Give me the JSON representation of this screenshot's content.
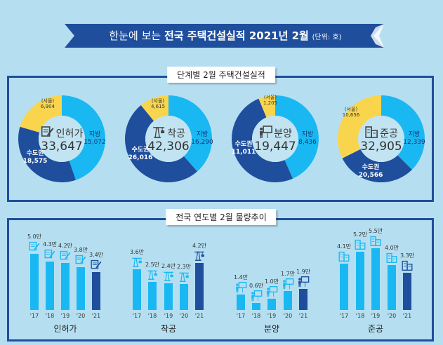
{
  "header": {
    "prefix": "한눈에 보는",
    "title": "전국 주택건설실적 2021년 2월",
    "unit": "(단위: 호)"
  },
  "colors": {
    "dark": "#1f4e9c",
    "light": "#1ab8f2",
    "seoul": "#f9d54e",
    "background": "#b5dff1"
  },
  "section1": {
    "label": "단계별 2월 주택건설실적"
  },
  "section2": {
    "label": "전국 연도별 2월 물량추이"
  },
  "chart_data": [
    {
      "type": "pie",
      "title": "단계별 2월 주택건설실적",
      "donuts": [
        {
          "name": "인허가",
          "icon": "document-pen-icon",
          "total": "33,647",
          "local_label": "지방",
          "local": "15,072",
          "metro_label": "수도권",
          "metro": "18,575",
          "seoul_label": "(서울)",
          "seoul": "6,904",
          "values": {
            "local": 15072,
            "metro": 18575,
            "seoul": 6904
          }
        },
        {
          "name": "착공",
          "icon": "crane-icon",
          "total": "42,306",
          "local_label": "지방",
          "local": "16,290",
          "metro_label": "수도권",
          "metro": "26,016",
          "seoul_label": "(서울)",
          "seoul": "4,615",
          "values": {
            "local": 16290,
            "metro": 26016,
            "seoul": 4615
          }
        },
        {
          "name": "분양",
          "icon": "presentation-board-icon",
          "total": "19,447",
          "local_label": "지방",
          "local": "8,436",
          "metro_label": "수도권",
          "metro": "11,011",
          "seoul_label": "(서울)",
          "seoul": "1,205",
          "values": {
            "local": 8436,
            "metro": 11011,
            "seoul": 1205
          }
        },
        {
          "name": "준공",
          "icon": "buildings-icon",
          "total": "32,905",
          "local_label": "지방",
          "local": "12,339",
          "metro_label": "수도권",
          "metro": "20,566",
          "seoul_label": "(서울)",
          "seoul": "10,656",
          "values": {
            "local": 12339,
            "metro": 20566,
            "seoul": 10656
          }
        }
      ]
    },
    {
      "type": "bar",
      "title": "전국 연도별 2월 물량추이",
      "categories": [
        "'17",
        "'18",
        "'19",
        "'20",
        "'21"
      ],
      "highlight_last": true,
      "groups": [
        {
          "name": "인허가",
          "icon": "document-pen-icon",
          "values": [
            5.0,
            4.3,
            4.2,
            3.8,
            3.4
          ],
          "labels": [
            "5.0만",
            "4.3만",
            "4.2만",
            "3.8만",
            "3.4만"
          ]
        },
        {
          "name": "착공",
          "icon": "crane-icon",
          "values": [
            3.6,
            2.5,
            2.4,
            2.3,
            4.2
          ],
          "labels": [
            "3.6만",
            "2.5만",
            "2.4만",
            "2.3만",
            "4.2만"
          ]
        },
        {
          "name": "분양",
          "icon": "presentation-board-icon",
          "values": [
            1.4,
            0.6,
            1.0,
            1.7,
            1.9
          ],
          "labels": [
            "1.4만",
            "0.6만",
            "1.0만",
            "1.7만",
            "1.9만"
          ]
        },
        {
          "name": "준공",
          "icon": "buildings-icon",
          "values": [
            4.1,
            5.2,
            5.5,
            4.0,
            3.3
          ],
          "labels": [
            "4.1만",
            "5.2만",
            "5.5만",
            "4.0만",
            "3.3만"
          ]
        }
      ]
    }
  ]
}
